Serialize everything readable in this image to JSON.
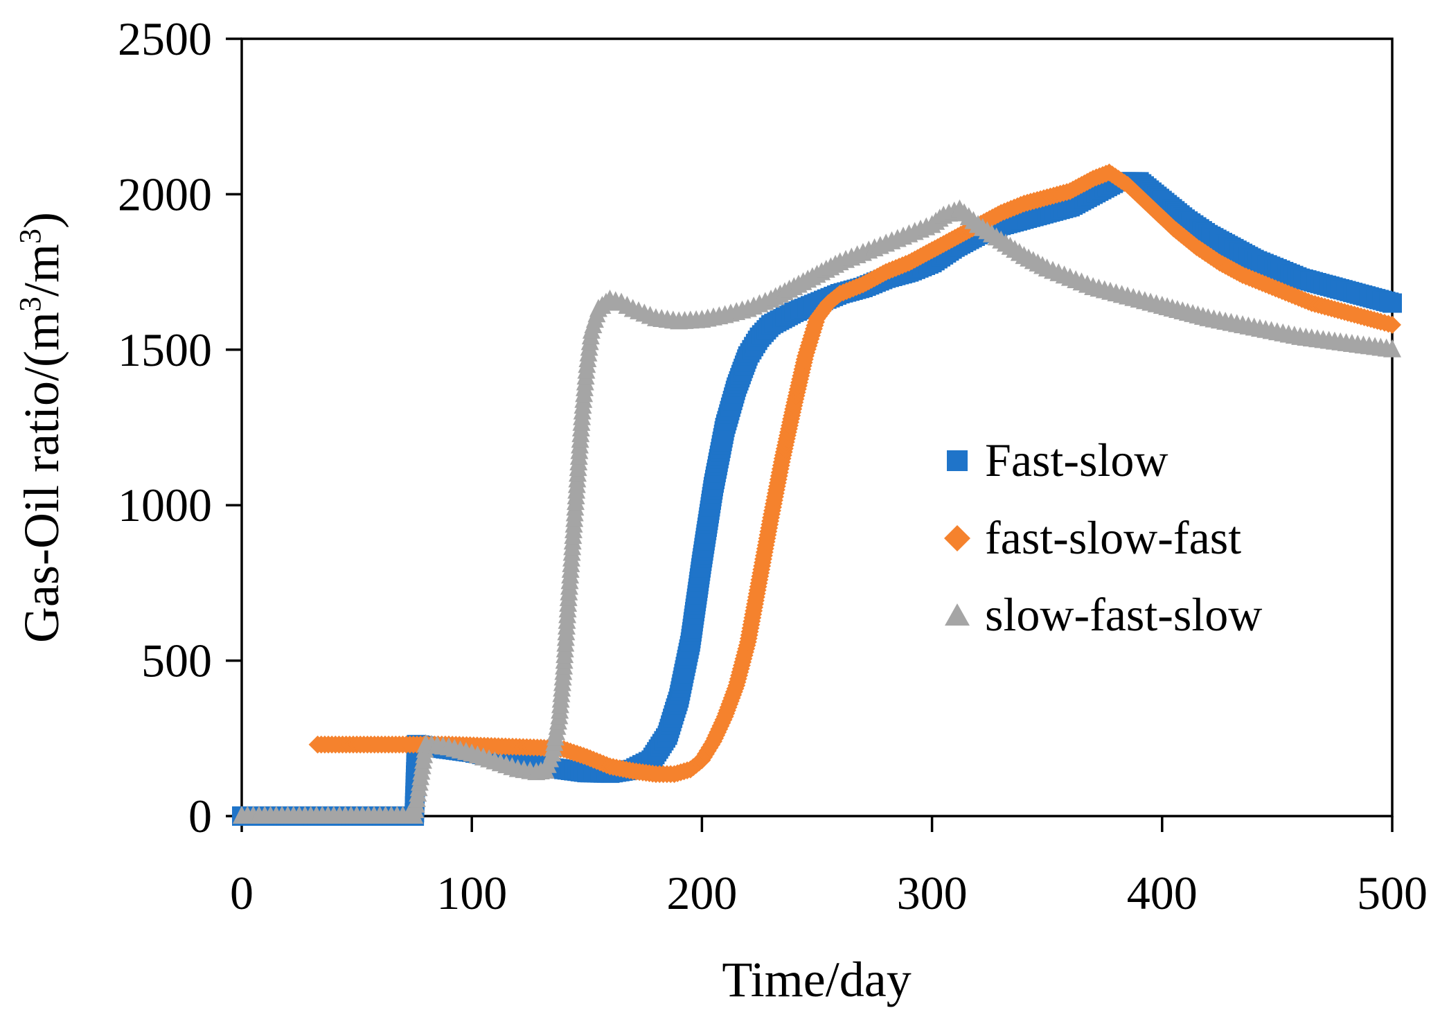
{
  "chart_data": {
    "type": "scatter",
    "title": "",
    "xlabel": "Time/day",
    "ylabel": {
      "main": "Gas-Oil ratio/(m",
      "sup1": "3",
      "mid": "/m",
      "sup2": "3",
      "end": ")"
    },
    "xlim": [
      0,
      500
    ],
    "ylim": [
      0,
      2500
    ],
    "xticks": [
      "0",
      "100",
      "200",
      "300",
      "400",
      "500"
    ],
    "yticks": [
      "0",
      "500",
      "1000",
      "1500",
      "2000",
      "2500"
    ],
    "grid": false,
    "legend_position": "right-middle",
    "series": [
      {
        "name": "Fast-slow",
        "marker": "square",
        "color": "#1f74c9",
        "points": [
          [
            0,
            0
          ],
          [
            70,
            0
          ],
          [
            75,
            0
          ],
          [
            76,
            230
          ],
          [
            80,
            225
          ],
          [
            90,
            215
          ],
          [
            100,
            205
          ],
          [
            110,
            190
          ],
          [
            120,
            175
          ],
          [
            130,
            160
          ],
          [
            140,
            150
          ],
          [
            150,
            140
          ],
          [
            160,
            138
          ],
          [
            170,
            150
          ],
          [
            178,
            180
          ],
          [
            185,
            260
          ],
          [
            190,
            380
          ],
          [
            195,
            560
          ],
          [
            200,
            820
          ],
          [
            205,
            1060
          ],
          [
            210,
            1250
          ],
          [
            215,
            1380
          ],
          [
            220,
            1480
          ],
          [
            225,
            1540
          ],
          [
            230,
            1580
          ],
          [
            240,
            1620
          ],
          [
            250,
            1650
          ],
          [
            260,
            1680
          ],
          [
            270,
            1700
          ],
          [
            280,
            1730
          ],
          [
            290,
            1750
          ],
          [
            300,
            1780
          ],
          [
            310,
            1830
          ],
          [
            320,
            1870
          ],
          [
            330,
            1900
          ],
          [
            340,
            1920
          ],
          [
            350,
            1940
          ],
          [
            360,
            1960
          ],
          [
            370,
            2000
          ],
          [
            380,
            2040
          ],
          [
            390,
            2040
          ],
          [
            400,
            1980
          ],
          [
            410,
            1920
          ],
          [
            420,
            1870
          ],
          [
            430,
            1830
          ],
          [
            440,
            1790
          ],
          [
            450,
            1760
          ],
          [
            460,
            1730
          ],
          [
            470,
            1710
          ],
          [
            480,
            1690
          ],
          [
            490,
            1670
          ],
          [
            500,
            1650
          ]
        ]
      },
      {
        "name": "fast-slow-fast",
        "marker": "diamond",
        "color": "#f5822d",
        "points": [
          [
            33,
            230
          ],
          [
            50,
            230
          ],
          [
            70,
            230
          ],
          [
            90,
            230
          ],
          [
            110,
            225
          ],
          [
            130,
            220
          ],
          [
            140,
            215
          ],
          [
            150,
            190
          ],
          [
            160,
            160
          ],
          [
            170,
            145
          ],
          [
            180,
            135
          ],
          [
            188,
            135
          ],
          [
            195,
            150
          ],
          [
            200,
            180
          ],
          [
            205,
            240
          ],
          [
            210,
            320
          ],
          [
            215,
            420
          ],
          [
            220,
            560
          ],
          [
            225,
            760
          ],
          [
            230,
            960
          ],
          [
            235,
            1150
          ],
          [
            240,
            1320
          ],
          [
            245,
            1480
          ],
          [
            250,
            1600
          ],
          [
            255,
            1650
          ],
          [
            260,
            1680
          ],
          [
            270,
            1710
          ],
          [
            280,
            1750
          ],
          [
            290,
            1780
          ],
          [
            300,
            1820
          ],
          [
            310,
            1860
          ],
          [
            320,
            1900
          ],
          [
            330,
            1940
          ],
          [
            340,
            1970
          ],
          [
            350,
            1990
          ],
          [
            360,
            2010
          ],
          [
            370,
            2050
          ],
          [
            377,
            2070
          ],
          [
            385,
            2030
          ],
          [
            395,
            1960
          ],
          [
            405,
            1890
          ],
          [
            415,
            1830
          ],
          [
            425,
            1780
          ],
          [
            435,
            1740
          ],
          [
            445,
            1710
          ],
          [
            455,
            1680
          ],
          [
            465,
            1650
          ],
          [
            475,
            1630
          ],
          [
            485,
            1610
          ],
          [
            495,
            1590
          ],
          [
            500,
            1580
          ]
        ]
      },
      {
        "name": "slow-fast-slow",
        "marker": "triangle",
        "color": "#a5a5a5",
        "points": [
          [
            0,
            0
          ],
          [
            20,
            0
          ],
          [
            40,
            0
          ],
          [
            60,
            0
          ],
          [
            75,
            0
          ],
          [
            80,
            230
          ],
          [
            90,
            220
          ],
          [
            100,
            200
          ],
          [
            110,
            175
          ],
          [
            120,
            150
          ],
          [
            128,
            140
          ],
          [
            132,
            145
          ],
          [
            135,
            200
          ],
          [
            138,
            320
          ],
          [
            140,
            480
          ],
          [
            142,
            700
          ],
          [
            144,
            900
          ],
          [
            146,
            1100
          ],
          [
            148,
            1300
          ],
          [
            150,
            1450
          ],
          [
            152,
            1560
          ],
          [
            155,
            1630
          ],
          [
            160,
            1660
          ],
          [
            165,
            1650
          ],
          [
            170,
            1630
          ],
          [
            180,
            1600
          ],
          [
            190,
            1590
          ],
          [
            200,
            1595
          ],
          [
            210,
            1610
          ],
          [
            220,
            1630
          ],
          [
            230,
            1660
          ],
          [
            240,
            1700
          ],
          [
            250,
            1740
          ],
          [
            260,
            1780
          ],
          [
            270,
            1810
          ],
          [
            280,
            1840
          ],
          [
            290,
            1870
          ],
          [
            300,
            1900
          ],
          [
            305,
            1930
          ],
          [
            312,
            1950
          ],
          [
            320,
            1900
          ],
          [
            330,
            1850
          ],
          [
            340,
            1800
          ],
          [
            350,
            1760
          ],
          [
            360,
            1730
          ],
          [
            370,
            1700
          ],
          [
            380,
            1680
          ],
          [
            390,
            1660
          ],
          [
            400,
            1640
          ],
          [
            420,
            1600
          ],
          [
            440,
            1570
          ],
          [
            460,
            1540
          ],
          [
            480,
            1520
          ],
          [
            500,
            1500
          ]
        ]
      }
    ]
  }
}
